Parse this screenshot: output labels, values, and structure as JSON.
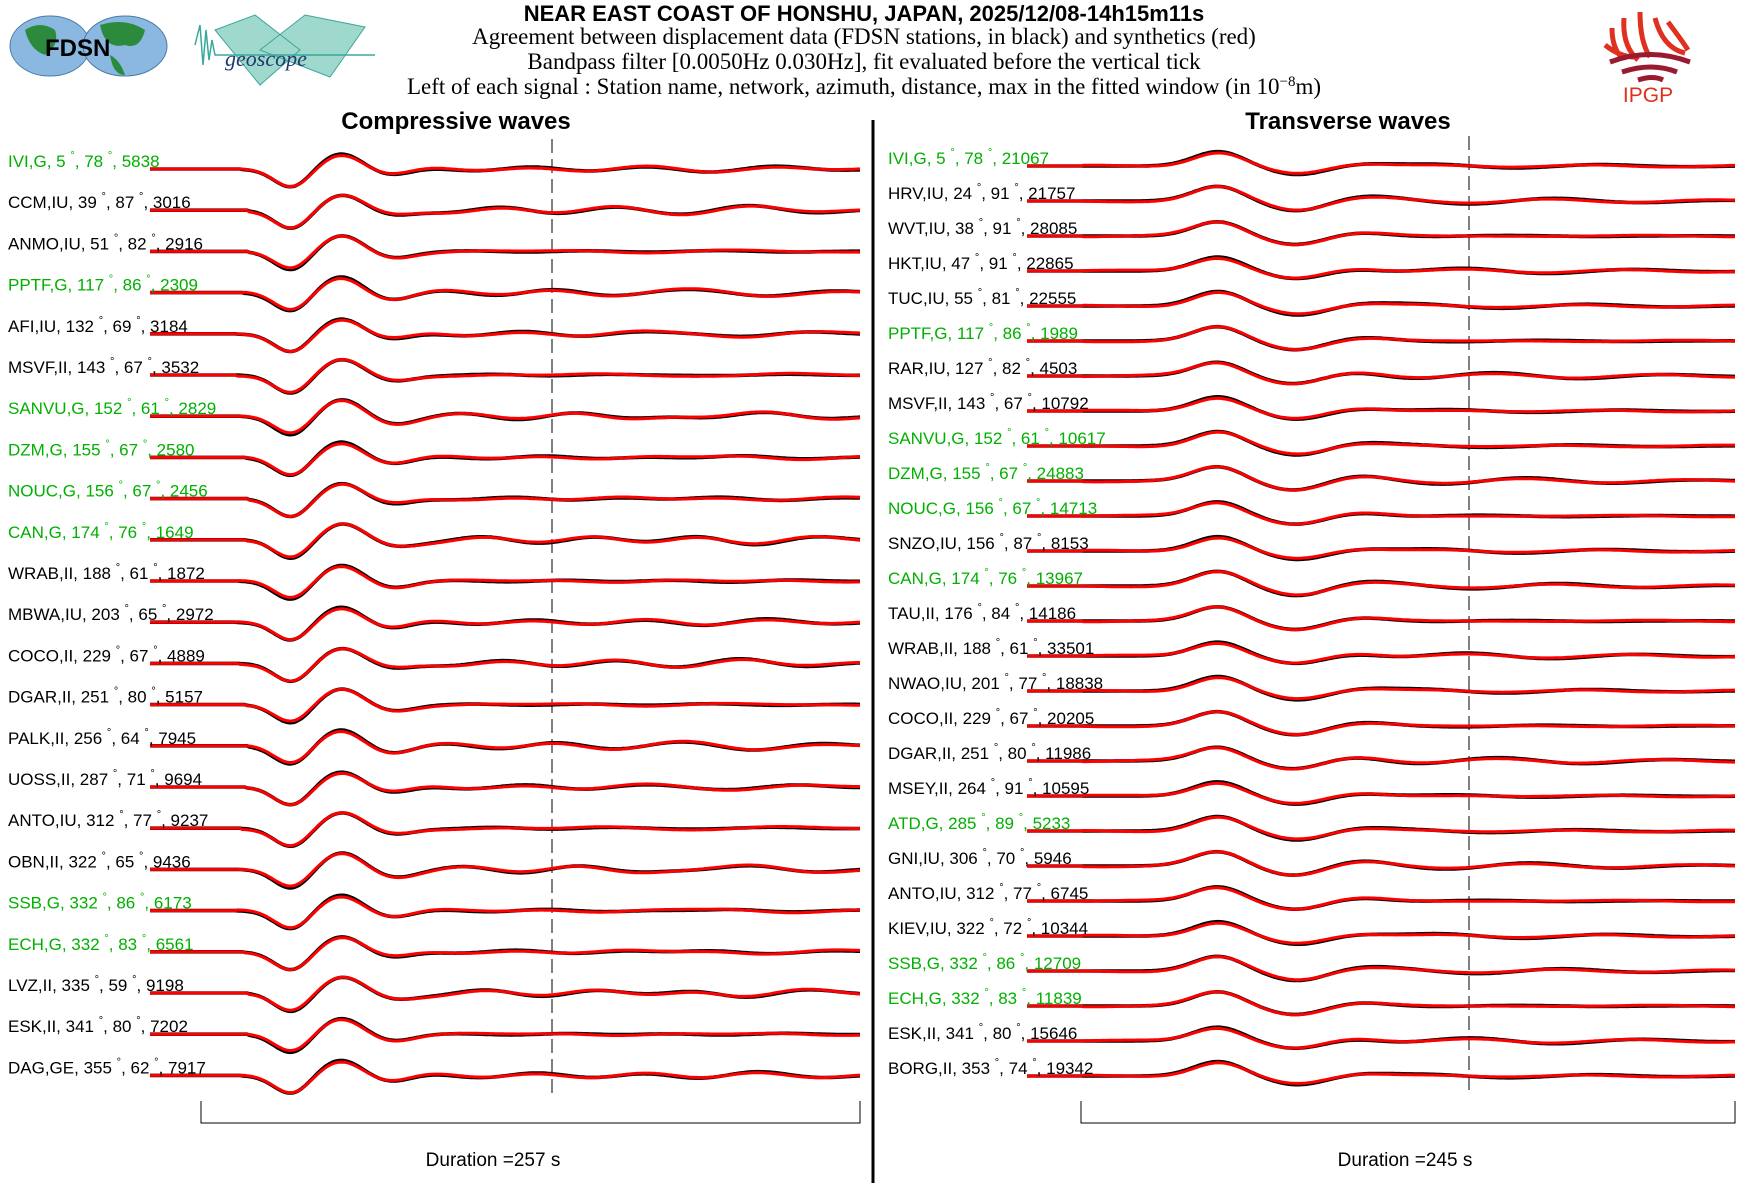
{
  "header": {
    "title": "NEAR EAST COAST OF HONSHU, JAPAN, 2025/12/08-14h15m11s",
    "line1": "Agreement between displacement data (FDSN stations, in black) and synthetics (red)",
    "line2": "Bandpass filter [0.0050Hz 0.030Hz], fit evaluated before the vertical tick",
    "line3_prefix": "Left of each signal : Station name, network, azimuth, distance, max in the fitted window (in 10",
    "line3_exp": "−8",
    "line3_suffix": "m)",
    "logos": {
      "fdsn": "FDSN",
      "geoscope": "geoscope",
      "ipgp": "IPGP"
    }
  },
  "colors": {
    "data": "#000000",
    "synthetic": "#ff0000",
    "geoscope_station": "#00b000",
    "other_station": "#000000"
  },
  "chart_data": [
    {
      "type": "line",
      "title": "Compressive waves",
      "duration_label": "Duration =257 s",
      "duration_s": 257,
      "stations": [
        {
          "name": "IVI",
          "net": "G",
          "az": "5",
          "dist": "78",
          "max": "5838"
        },
        {
          "name": "CCM",
          "net": "IU",
          "az": "39",
          "dist": "87",
          "max": "3016"
        },
        {
          "name": "ANMO",
          "net": "IU",
          "az": "51",
          "dist": "82",
          "max": "2916"
        },
        {
          "name": "PPTF",
          "net": "G",
          "az": "117",
          "dist": "86",
          "max": "2309"
        },
        {
          "name": "AFI",
          "net": "IU",
          "az": "132",
          "dist": "69",
          "max": "3184"
        },
        {
          "name": "MSVF",
          "net": "II",
          "az": "143",
          "dist": "67",
          "max": "3532"
        },
        {
          "name": "SANVU",
          "net": "G",
          "az": "152",
          "dist": "61",
          "max": "2829"
        },
        {
          "name": "DZM",
          "net": "G",
          "az": "155",
          "dist": "67",
          "max": "2580"
        },
        {
          "name": "NOUC",
          "net": "G",
          "az": "156",
          "dist": "67",
          "max": "2456"
        },
        {
          "name": "CAN",
          "net": "G",
          "az": "174",
          "dist": "76",
          "max": "1649"
        },
        {
          "name": "WRAB",
          "net": "II",
          "az": "188",
          "dist": "61",
          "max": "1872"
        },
        {
          "name": "MBWA",
          "net": "IU",
          "az": "203",
          "dist": "65",
          "max": "2972"
        },
        {
          "name": "COCO",
          "net": "II",
          "az": "229",
          "dist": "67",
          "max": "4889"
        },
        {
          "name": "DGAR",
          "net": "II",
          "az": "251",
          "dist": "80",
          "max": "5157"
        },
        {
          "name": "PALK",
          "net": "II",
          "az": "256",
          "dist": "64",
          "max": "7945"
        },
        {
          "name": "UOSS",
          "net": "II",
          "az": "287",
          "dist": "71",
          "max": "9694"
        },
        {
          "name": "ANTO",
          "net": "IU",
          "az": "312",
          "dist": "77",
          "max": "9237"
        },
        {
          "name": "OBN",
          "net": "II",
          "az": "322",
          "dist": "65",
          "max": "9436"
        },
        {
          "name": "SSB",
          "net": "G",
          "az": "332",
          "dist": "86",
          "max": "6173"
        },
        {
          "name": "ECH",
          "net": "G",
          "az": "332",
          "dist": "83",
          "max": "6561"
        },
        {
          "name": "LVZ",
          "net": "II",
          "az": "335",
          "dist": "59",
          "max": "9198"
        },
        {
          "name": "ESK",
          "net": "II",
          "az": "341",
          "dist": "80",
          "max": "7202"
        },
        {
          "name": "DAG",
          "net": "GE",
          "az": "355",
          "dist": "62",
          "max": "7917"
        }
      ]
    },
    {
      "type": "line",
      "title": "Transverse waves",
      "duration_label": "Duration =245 s",
      "duration_s": 245,
      "stations": [
        {
          "name": "IVI",
          "net": "G",
          "az": "5",
          "dist": "78",
          "max": "21067"
        },
        {
          "name": "HRV",
          "net": "IU",
          "az": "24",
          "dist": "91",
          "max": "21757"
        },
        {
          "name": "WVT",
          "net": "IU",
          "az": "38",
          "dist": "91",
          "max": "28085"
        },
        {
          "name": "HKT",
          "net": "IU",
          "az": "47",
          "dist": "91",
          "max": "22865"
        },
        {
          "name": "TUC",
          "net": "IU",
          "az": "55",
          "dist": "81",
          "max": "22555"
        },
        {
          "name": "PPTF",
          "net": "G",
          "az": "117",
          "dist": "86",
          "max": "1989"
        },
        {
          "name": "RAR",
          "net": "IU",
          "az": "127",
          "dist": "82",
          "max": "4503"
        },
        {
          "name": "MSVF",
          "net": "II",
          "az": "143",
          "dist": "67",
          "max": "10792"
        },
        {
          "name": "SANVU",
          "net": "G",
          "az": "152",
          "dist": "61",
          "max": "10617"
        },
        {
          "name": "DZM",
          "net": "G",
          "az": "155",
          "dist": "67",
          "max": "24883"
        },
        {
          "name": "NOUC",
          "net": "G",
          "az": "156",
          "dist": "67",
          "max": "14713"
        },
        {
          "name": "SNZO",
          "net": "IU",
          "az": "156",
          "dist": "87",
          "max": "8153"
        },
        {
          "name": "CAN",
          "net": "G",
          "az": "174",
          "dist": "76",
          "max": "13967"
        },
        {
          "name": "TAU",
          "net": "II",
          "az": "176",
          "dist": "84",
          "max": "14186"
        },
        {
          "name": "WRAB",
          "net": "II",
          "az": "188",
          "dist": "61",
          "max": "33501"
        },
        {
          "name": "NWAO",
          "net": "IU",
          "az": "201",
          "dist": "77",
          "max": "18838"
        },
        {
          "name": "COCO",
          "net": "II",
          "az": "229",
          "dist": "67",
          "max": "20205"
        },
        {
          "name": "DGAR",
          "net": "II",
          "az": "251",
          "dist": "80",
          "max": "11986"
        },
        {
          "name": "MSEY",
          "net": "II",
          "az": "264",
          "dist": "91",
          "max": "10595"
        },
        {
          "name": "ATD",
          "net": "G",
          "az": "285",
          "dist": "89",
          "max": "5233"
        },
        {
          "name": "GNI",
          "net": "IU",
          "az": "306",
          "dist": "70",
          "max": "5946"
        },
        {
          "name": "ANTO",
          "net": "IU",
          "az": "312",
          "dist": "77",
          "max": "6745"
        },
        {
          "name": "KIEV",
          "net": "IU",
          "az": "322",
          "dist": "72",
          "max": "10344"
        },
        {
          "name": "SSB",
          "net": "G",
          "az": "332",
          "dist": "86",
          "max": "12709"
        },
        {
          "name": "ECH",
          "net": "G",
          "az": "332",
          "dist": "83",
          "max": "11839"
        },
        {
          "name": "ESK",
          "net": "II",
          "az": "341",
          "dist": "80",
          "max": "15646"
        },
        {
          "name": "BORG",
          "net": "II",
          "az": "353",
          "dist": "74",
          "max": "19342"
        }
      ]
    }
  ]
}
